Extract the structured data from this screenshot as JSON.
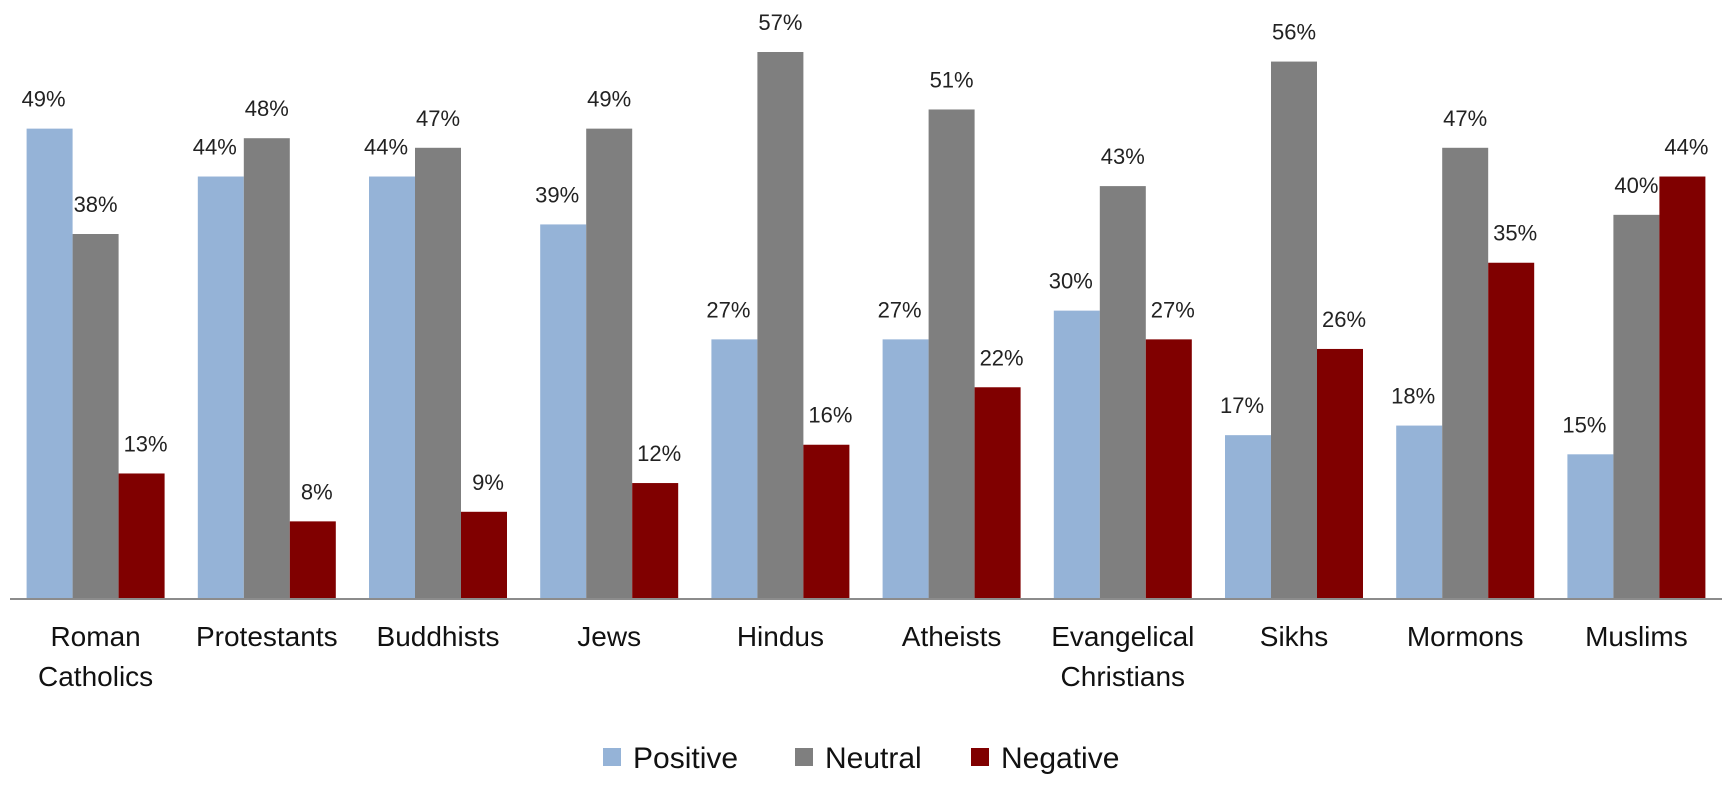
{
  "chart_data": {
    "type": "bar",
    "categories": [
      [
        "Roman",
        "Catholics"
      ],
      [
        "Protestants"
      ],
      [
        "Buddhists"
      ],
      [
        "Jews"
      ],
      [
        "Hindus"
      ],
      [
        "Atheists"
      ],
      [
        "Evangelical",
        "Christians"
      ],
      [
        "Sikhs"
      ],
      [
        "Mormons"
      ],
      [
        "Muslims"
      ]
    ],
    "series": [
      {
        "name": "Positive",
        "color": "#95b3d7",
        "values": [
          49,
          44,
          44,
          39,
          27,
          27,
          30,
          17,
          18,
          15
        ],
        "labels": [
          "49%",
          "44%",
          "44%",
          "39%",
          "27%",
          "27%",
          "30%",
          "17%",
          "18%",
          "15%"
        ]
      },
      {
        "name": "Neutral",
        "color": "#7f7f7f",
        "values": [
          38,
          48,
          47,
          49,
          57,
          51,
          43,
          56,
          47,
          40
        ],
        "labels": [
          "38%",
          "48%",
          "47%",
          "49%",
          "57%",
          "51%",
          "43%",
          "56%",
          "47%",
          "40%"
        ]
      },
      {
        "name": "Negative",
        "color": "#800000",
        "values": [
          13,
          8,
          9,
          12,
          16,
          22,
          27,
          26,
          35,
          44
        ],
        "labels": [
          "13%",
          "8%",
          "9%",
          "12%",
          "16%",
          "22%",
          "27%",
          "26%",
          "35%",
          "44%"
        ]
      }
    ],
    "ylim": [
      0,
      57
    ],
    "grid": false,
    "legend": "bottom-center"
  }
}
